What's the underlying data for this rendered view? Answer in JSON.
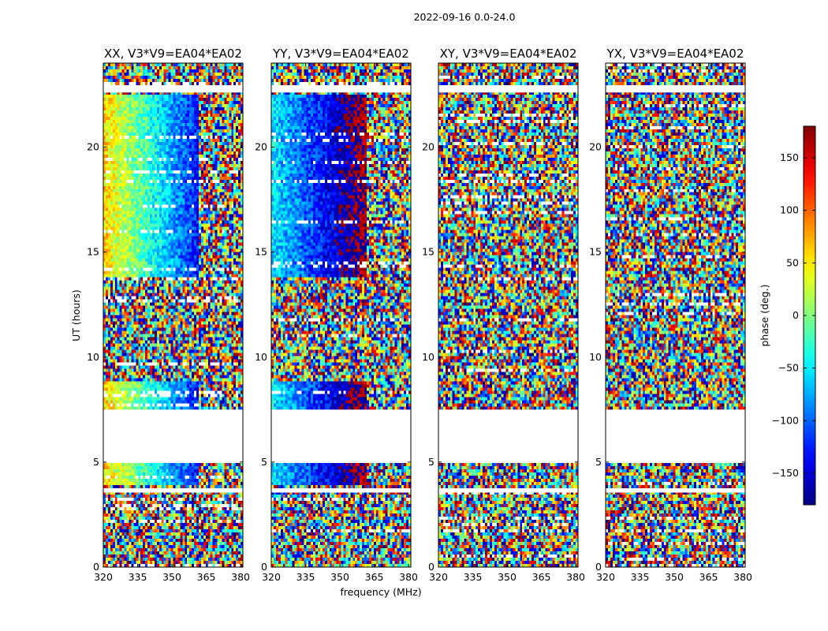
{
  "chart_data": {
    "type": "heatmap",
    "suptitle": "2022-09-16 0.0-24.0",
    "xlabel": "frequency (MHz)",
    "ylabel": "UT (hours)",
    "xlim": [
      320,
      381
    ],
    "ylim": [
      0,
      24
    ],
    "xticks": [
      "320",
      "335",
      "350",
      "365",
      "380"
    ],
    "xtick_values": [
      320,
      335,
      350,
      365,
      380
    ],
    "yticks": [
      "0",
      "5",
      "10",
      "15",
      "20"
    ],
    "ytick_values": [
      0,
      5,
      10,
      15,
      20
    ],
    "colormap": "jet",
    "colorbar": {
      "label": "phase (deg.)",
      "range": [
        -180,
        180
      ],
      "ticks": [
        "−150",
        "−100",
        "−50",
        "0",
        "50",
        "100",
        "150"
      ],
      "tick_values": [
        -150,
        -100,
        -50,
        0,
        50,
        100,
        150
      ]
    },
    "no_data_intervals_hours": [
      [
        5.0,
        7.5
      ],
      [
        22.6,
        22.9
      ],
      [
        3.55,
        3.75
      ]
    ],
    "panels": [
      {
        "title": "XX, V3*V9=EA04*EA02",
        "coherent_phase": true,
        "phase_start_deg": 60,
        "phase_slope_deg_per_mhz": -4.5
      },
      {
        "title": "YY, V3*V9=EA04*EA02",
        "coherent_phase": true,
        "phase_start_deg": -50,
        "phase_slope_deg_per_mhz": -3.5
      },
      {
        "title": "XY, V3*V9=EA04*EA02",
        "coherent_phase": false,
        "phase_start_deg": 0,
        "phase_slope_deg_per_mhz": 0
      },
      {
        "title": "YX, V3*V9=EA04*EA02",
        "coherent_phase": false,
        "phase_start_deg": 0,
        "phase_slope_deg_per_mhz": 0
      }
    ]
  }
}
